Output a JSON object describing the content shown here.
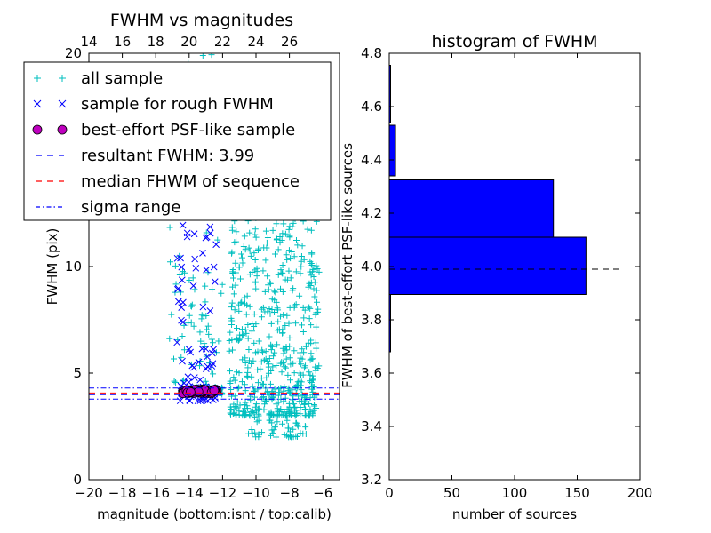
{
  "figure": {
    "left_panel": {
      "title": "FWHM vs magnitudes",
      "ylabel": "FWHM (pix)",
      "xlabel": "magnitude (bottom:isnt / top:calib)"
    },
    "right_panel": {
      "title": "histogram of FWHM",
      "ylabel": "FWHM of best-effort PSF-like sources",
      "xlabel": "number of sources"
    },
    "legend": {
      "entries": [
        {
          "label": "all sample",
          "color": "#00bfbf",
          "marker": "plus"
        },
        {
          "label": "sample for rough FWHM",
          "color": "#0000ff",
          "marker": "x"
        },
        {
          "label": "best-effort PSF-like sample",
          "color": "#bf00bf",
          "marker": "circle"
        },
        {
          "label": "resultant FWHM: 3.99",
          "color": "#0000ff",
          "marker": "dashed"
        },
        {
          "label": "median FHWM of sequence",
          "color": "#ff0000",
          "marker": "dashed"
        },
        {
          "label": "sigma range",
          "color": "#0000ff",
          "marker": "dashdot"
        }
      ],
      "placement": "upper-left"
    }
  },
  "chart_data": [
    {
      "type": "scatter",
      "title": "FWHM vs magnitudes",
      "xlabel": "magnitude (bottom:isnt / top:calib)",
      "ylabel": "FWHM (pix)",
      "xlim": [
        -20,
        -5
      ],
      "ylim": [
        0,
        20
      ],
      "x_ticks": [
        "−20",
        "−18",
        "−16",
        "−14",
        "−12",
        "−10",
        "−8",
        "−6"
      ],
      "x_tick_values": [
        -20,
        -18,
        -16,
        -14,
        -12,
        -10,
        -8,
        -6
      ],
      "y_ticks": [
        "0",
        "5",
        "10"
      ],
      "y_tick_values": [
        0,
        5,
        10
      ],
      "top_axis_ticks": [
        "14",
        "16",
        "18",
        "20",
        "22",
        "24",
        "26"
      ],
      "top_axis_values": [
        14,
        16,
        18,
        20,
        22,
        24,
        26
      ],
      "top_axis_offset": 34,
      "series": [
        {
          "name": "all sample",
          "color": "#00bfbf",
          "marker": "plus",
          "groups": [
            {
              "x_range": [
                -15.2,
                -12.0
              ],
              "y_range": [
                4.0,
                20.0
              ],
              "count": 110
            },
            {
              "x_range": [
                -11.6,
                -6.2
              ],
              "y_range": [
                3.0,
                13.0
              ],
              "count": 520
            },
            {
              "x_range": [
                -10.5,
                -7.0
              ],
              "y_range": [
                2.0,
                4.5
              ],
              "count": 80
            },
            {
              "x_range": [
                -14.5,
                -12.0
              ],
              "y_range": [
                4.0,
                4.4
              ],
              "count": 60
            }
          ]
        },
        {
          "name": "sample for rough FWHM",
          "color": "#0000ff",
          "marker": "x",
          "groups": [
            {
              "x_range": [
                -14.8,
                -12.3
              ],
              "y_range": [
                3.7,
                12.0
              ],
              "count": 70
            },
            {
              "x_range": [
                -14.6,
                -12.4
              ],
              "y_range": [
                4.0,
                4.4
              ],
              "count": 40
            }
          ]
        },
        {
          "name": "best-effort PSF-like sample",
          "color": "#bf00bf",
          "marker": "circle",
          "groups": [
            {
              "x_range": [
                -14.4,
                -12.3
              ],
              "y_range": [
                4.05,
                4.25
              ],
              "count": 45
            }
          ]
        }
      ],
      "lines": [
        {
          "name": "resultant FWHM: 3.99",
          "y": 3.99,
          "color": "#0000ff",
          "style": "dashed"
        },
        {
          "name": "median FHWM of sequence",
          "y": 4.07,
          "color": "#ff0000",
          "style": "dashed"
        },
        {
          "name": "sigma range",
          "y": 4.3,
          "color": "#0000ff",
          "style": "dashdot"
        },
        {
          "name": "sigma range",
          "y": 3.78,
          "color": "#0000ff",
          "style": "dashdot"
        }
      ]
    },
    {
      "type": "bar",
      "orientation": "horizontal",
      "title": "histogram of FWHM",
      "xlabel": "number of sources",
      "ylabel": "FWHM of best-effort PSF-like sources",
      "xlim": [
        0,
        200
      ],
      "ylim": [
        3.2,
        4.8
      ],
      "x_ticks": [
        "0",
        "50",
        "100",
        "150",
        "200"
      ],
      "x_tick_values": [
        0,
        50,
        100,
        150,
        200
      ],
      "y_ticks": [
        "3.2",
        "3.4",
        "3.6",
        "3.8",
        "4.0",
        "4.2",
        "4.4",
        "4.6",
        "4.8"
      ],
      "y_tick_values": [
        3.2,
        3.4,
        3.6,
        3.8,
        4.0,
        4.2,
        4.4,
        4.6,
        4.8
      ],
      "bar_color": "#0000ff",
      "bins": [
        {
          "lo": 3.68,
          "hi": 3.895,
          "count": 1
        },
        {
          "lo": 3.895,
          "hi": 4.11,
          "count": 157
        },
        {
          "lo": 4.11,
          "hi": 4.325,
          "count": 131
        },
        {
          "lo": 4.325,
          "hi": 4.54,
          "count": 0
        },
        {
          "lo": 4.54,
          "hi": 4.755,
          "count": 1
        }
      ],
      "extra_bins": [
        {
          "lo": 4.34,
          "hi": 4.53,
          "count": 5
        }
      ],
      "reference_line": {
        "y": 3.99,
        "x_range": [
          0,
          185
        ],
        "color": "#000000",
        "style": "dashed"
      }
    }
  ]
}
